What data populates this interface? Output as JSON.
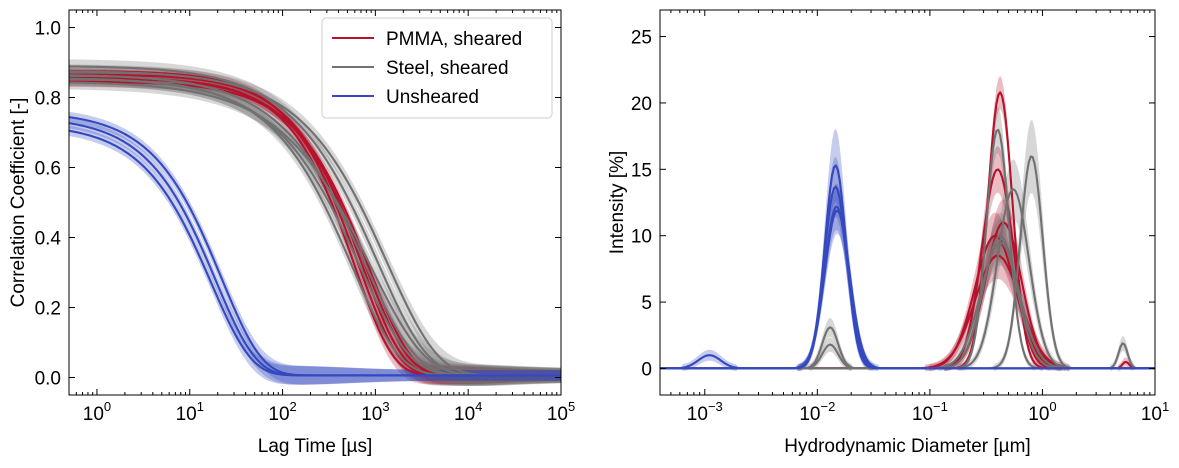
{
  "colors": {
    "pmma": "#b5122b",
    "steel": "#717171",
    "unsheared": "#3448c0"
  },
  "chart_data": [
    {
      "type": "line",
      "xlabel": "Lag Time [µs]",
      "ylabel": "Correlation Coefficient [-]",
      "xscale": "log",
      "xlim": [
        0.5,
        100000
      ],
      "ylim": [
        -0.05,
        1.05
      ],
      "xticks": [
        {
          "v": 1,
          "mant": "10",
          "exp": "0"
        },
        {
          "v": 10,
          "mant": "10",
          "exp": "1"
        },
        {
          "v": 100,
          "mant": "10",
          "exp": "2"
        },
        {
          "v": 1000,
          "mant": "10",
          "exp": "3"
        },
        {
          "v": 10000,
          "mant": "10",
          "exp": "4"
        },
        {
          "v": 100000,
          "mant": "10",
          "exp": "5"
        }
      ],
      "yticks": [
        {
          "v": 0.0,
          "label": "0.0"
        },
        {
          "v": 0.2,
          "label": "0.2"
        },
        {
          "v": 0.4,
          "label": "0.4"
        },
        {
          "v": 0.6,
          "label": "0.6"
        },
        {
          "v": 0.8,
          "label": "0.8"
        },
        {
          "v": 1.0,
          "label": "1.0"
        }
      ],
      "legend": {
        "position": "top-right",
        "entries": [
          {
            "label": "PMMA, sheared",
            "color_key": "pmma"
          },
          {
            "label": "Steel, sheared",
            "color_key": "steel"
          },
          {
            "label": "Unsheared",
            "color_key": "unsheared"
          }
        ]
      },
      "series": [
        {
          "group": "pmma",
          "curves": [
            {
              "baseline": 0.87,
              "tau": 650,
              "beta": 1.0,
              "band": 0.015
            },
            {
              "baseline": 0.86,
              "tau": 720,
              "beta": 1.0,
              "band": 0.015
            },
            {
              "baseline": 0.85,
              "tau": 780,
              "beta": 0.95,
              "band": 0.015
            },
            {
              "baseline": 0.85,
              "tau": 600,
              "beta": 1.05,
              "band": 0.015
            },
            {
              "baseline": 0.84,
              "tau": 850,
              "beta": 0.95,
              "band": 0.015
            }
          ]
        },
        {
          "group": "steel",
          "curves": [
            {
              "baseline": 0.885,
              "tau": 1050,
              "beta": 0.8,
              "band": 0.02
            },
            {
              "baseline": 0.87,
              "tau": 1350,
              "beta": 0.8,
              "band": 0.02
            },
            {
              "baseline": 0.86,
              "tau": 780,
              "beta": 0.8,
              "band": 0.02
            },
            {
              "baseline": 0.85,
              "tau": 680,
              "beta": 0.8,
              "band": 0.02
            },
            {
              "baseline": 0.85,
              "tau": 560,
              "beta": 0.85,
              "band": 0.02
            },
            {
              "baseline": 0.84,
              "tau": 900,
              "beta": 0.75,
              "band": 0.02
            }
          ]
        },
        {
          "group": "unsheared",
          "curves": [
            {
              "baseline": 0.755,
              "tau": 22,
              "beta": 1.0,
              "band": 0.015
            },
            {
              "baseline": 0.74,
              "tau": 19,
              "beta": 1.0,
              "band": 0.015
            },
            {
              "baseline": 0.72,
              "tau": 17,
              "beta": 1.0,
              "band": 0.015
            }
          ]
        }
      ]
    },
    {
      "type": "line",
      "xlabel": "Hydrodynamic Diameter [µm]",
      "ylabel": "Intensity [%]",
      "xscale": "log",
      "xlim": [
        0.0004,
        10
      ],
      "ylim": [
        -2,
        27
      ],
      "xticks": [
        {
          "v": 0.001,
          "mant": "10",
          "exp": "−3"
        },
        {
          "v": 0.01,
          "mant": "10",
          "exp": "−2"
        },
        {
          "v": 0.1,
          "mant": "10",
          "exp": "−1"
        },
        {
          "v": 1,
          "mant": "10",
          "exp": "0"
        },
        {
          "v": 10,
          "mant": "10",
          "exp": "1"
        }
      ],
      "yticks": [
        {
          "v": 0,
          "label": "0"
        },
        {
          "v": 5,
          "label": "5"
        },
        {
          "v": 10,
          "label": "10"
        },
        {
          "v": 15,
          "label": "15"
        },
        {
          "v": 20,
          "label": "20"
        },
        {
          "v": 25,
          "label": "25"
        }
      ],
      "series": [
        {
          "group": "pmma",
          "curves": [
            {
              "peaks": [
                [
                  0.42,
                  20.8,
                  0.11
                ]
              ],
              "band": 1.0
            },
            {
              "peaks": [
                [
                  0.4,
                  15.0,
                  0.14
                ]
              ],
              "band": 1.5
            },
            {
              "peaks": [
                [
                  0.45,
                  11.0,
                  0.16
                ]
              ],
              "band": 1.5
            },
            {
              "peaks": [
                [
                  0.38,
                  10.0,
                  0.18
                ]
              ],
              "band": 1.5
            },
            {
              "peaks": [
                [
                  0.4,
                  8.5,
                  0.2
                ],
                [
                  5.5,
                  0.5,
                  0.03
                ]
              ],
              "band": 1.5
            }
          ]
        },
        {
          "group": "steel",
          "curves": [
            {
              "peaks": [
                [
                  0.4,
                  18.0,
                  0.1
                ]
              ],
              "band": 1.5
            },
            {
              "peaks": [
                [
                  0.8,
                  16.0,
                  0.1
                ]
              ],
              "band": 2.5
            },
            {
              "peaks": [
                [
                  0.55,
                  13.5,
                  0.14
                ]
              ],
              "band": 2.0
            },
            {
              "peaks": [
                [
                  0.013,
                  3.1,
                  0.07
                ],
                [
                  0.42,
                  10.0,
                  0.15
                ]
              ],
              "band": 1.5
            },
            {
              "peaks": [
                [
                  0.013,
                  1.8,
                  0.07
                ],
                [
                  0.42,
                  9.5,
                  0.17
                ],
                [
                  5.2,
                  1.9,
                  0.04
                ]
              ],
              "band": 1.5
            }
          ]
        },
        {
          "group": "unsheared",
          "curves": [
            {
              "peaks": [
                [
                  0.0011,
                  1.0,
                  0.1
                ],
                [
                  0.0145,
                  15.3,
                  0.095
                ]
              ],
              "band": 2.5
            },
            {
              "peaks": [
                [
                  0.0145,
                  13.7,
                  0.1
                ]
              ],
              "band": 2.0
            },
            {
              "peaks": [
                [
                  0.0148,
                  12.2,
                  0.105
                ]
              ],
              "band": 1.5
            },
            {
              "peaks": [
                [
                  0.015,
                  11.9,
                  0.11
                ]
              ],
              "band": 1.5
            }
          ]
        }
      ]
    }
  ]
}
